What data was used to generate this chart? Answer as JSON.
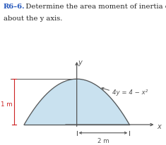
{
  "title_bold": "R6–6.",
  "title_rest": "   Determine the area moment of inertia of the area",
  "title_line2": "about the y axis.",
  "title_fontsize": 7.2,
  "curve_equation": "4y = 4 − x²",
  "dim_label_1m": "1 m",
  "dim_label_2m": "2 m",
  "axis_label_x": "x",
  "axis_label_y": "y",
  "fill_color": "#b8d8ea",
  "fill_alpha": 0.75,
  "curve_color": "#555555",
  "axis_color": "#555555",
  "dim_color_red": "#cc2222",
  "dim_color_dark": "#555555",
  "background_color": "#ffffff",
  "x_range": [
    -2.6,
    3.2
  ],
  "y_range": [
    -0.35,
    1.5
  ],
  "curve_x_min": -2.0,
  "curve_x_max": 2.0
}
